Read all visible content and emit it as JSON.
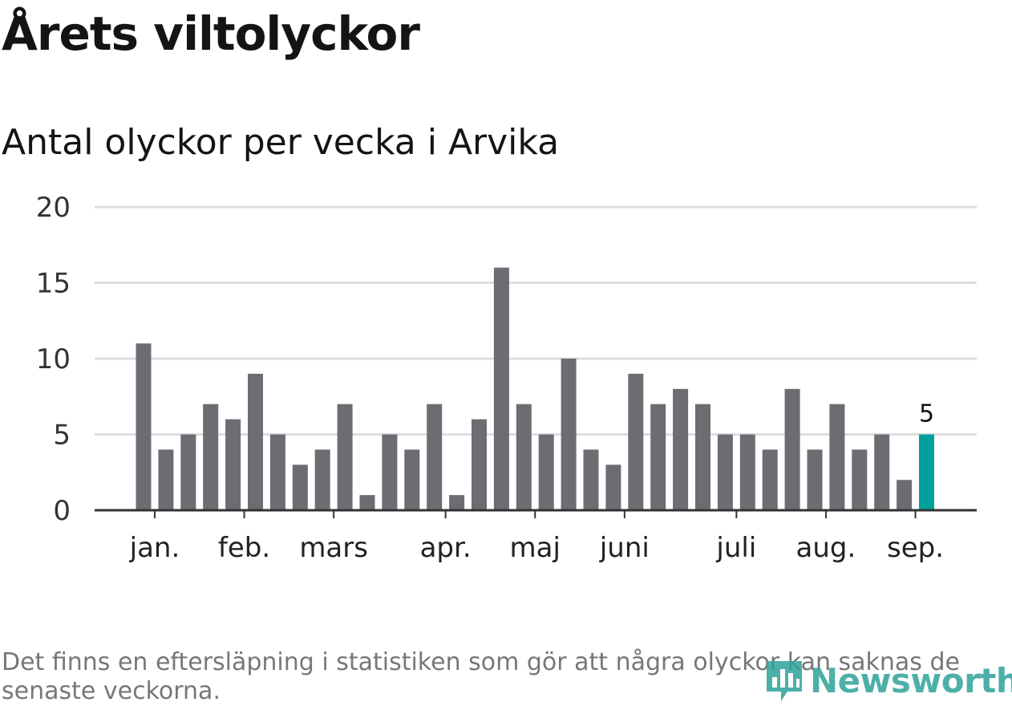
{
  "header": {
    "title": "Årets viltolyckor",
    "subtitle": "Antal olyckor per vecka i Arvika"
  },
  "footer": {
    "note": "Det finns en eftersläpning i statistiken som gör att några olyckor kan saknas de senaste veckorna.",
    "brand": "Newsworthy"
  },
  "colors": {
    "bar": "#6d6c72",
    "highlight": "#00a19a",
    "grid": "#dddddd",
    "axis": "#333333",
    "brand": "#2ea39a"
  },
  "chart_data": {
    "type": "bar",
    "title": "Antal olyckor per vecka i Arvika",
    "xlabel": "",
    "ylabel": "",
    "ylim": [
      0,
      20
    ],
    "yticks": [
      0,
      5,
      10,
      15,
      20
    ],
    "grid": true,
    "month_labels": [
      {
        "label": "jan.",
        "week_index": 0.5
      },
      {
        "label": "feb.",
        "week_index": 4.5
      },
      {
        "label": "mars",
        "week_index": 8.5
      },
      {
        "label": "apr.",
        "week_index": 13.5
      },
      {
        "label": "maj",
        "week_index": 17.5
      },
      {
        "label": "juni",
        "week_index": 21.5
      },
      {
        "label": "juli",
        "week_index": 26.5
      },
      {
        "label": "aug.",
        "week_index": 30.5
      },
      {
        "label": "sep.",
        "week_index": 34.5
      }
    ],
    "series": [
      {
        "values": [
          11,
          4,
          5,
          7,
          6,
          9,
          5,
          3,
          4,
          7,
          1,
          5,
          4,
          7,
          1,
          6,
          16,
          7,
          5,
          10,
          4,
          3,
          9,
          7,
          8,
          7,
          5,
          5,
          4,
          8,
          4,
          7,
          4,
          5,
          2,
          5
        ]
      }
    ],
    "highlight": {
      "index": 35,
      "label": "5"
    }
  }
}
